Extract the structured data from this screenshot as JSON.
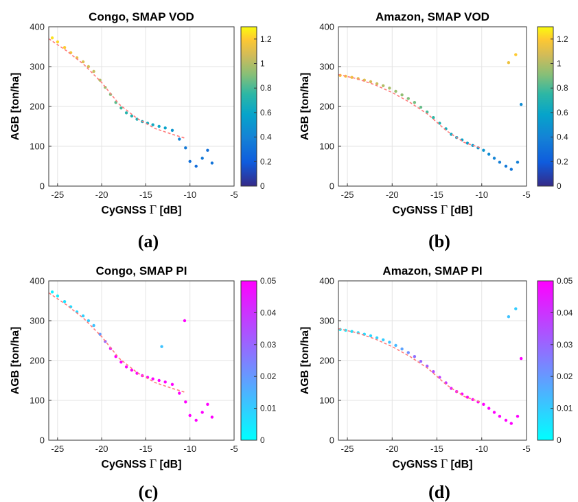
{
  "chart_data": [
    {
      "type": "scatter",
      "panel_label": "(a)",
      "title": "Congo, SMAP VOD",
      "xlabel": "CyGNSS",
      "xlabel_symbol": "Γ",
      "xlabel_unit": "[dB]",
      "ylabel": "AGB [ton/ha]",
      "xlim": [
        -26,
        -5
      ],
      "ylim": [
        0,
        400
      ],
      "xticks": [
        -25,
        -20,
        -15,
        -10,
        -5
      ],
      "yticks": [
        0,
        100,
        200,
        300,
        400
      ],
      "grid": true,
      "colorbar": {
        "min": 0,
        "max": 1.3,
        "ticks": [
          0,
          0.2,
          0.4,
          0.6,
          0.8,
          1,
          1.2
        ],
        "colormap": "parula"
      },
      "fit_color": "#ff7b7b",
      "fit_line": {
        "x": [
          -26,
          -24,
          -22,
          -20,
          -18,
          -16,
          -14,
          -12,
          -10.5
        ],
        "y": [
          370,
          340,
          305,
          260,
          205,
          170,
          145,
          130,
          120
        ]
      },
      "series": [
        {
          "x": [
            -25.6,
            -25.0,
            -24.2,
            -23.5,
            -22.8,
            -22.1,
            -21.5,
            -20.9,
            -20.2,
            -19.6,
            -19.0,
            -18.4,
            -17.8,
            -17.2,
            -16.6,
            -16.0,
            -15.4,
            -14.8,
            -14.2,
            -13.5,
            -12.8,
            -12.0,
            -11.2,
            -10.5,
            -10.0,
            -9.3,
            -8.6,
            -8.0,
            -7.5
          ],
          "y": [
            372,
            362,
            348,
            335,
            322,
            312,
            300,
            288,
            266,
            248,
            230,
            210,
            196,
            184,
            176,
            168,
            162,
            158,
            154,
            150,
            146,
            140,
            118,
            96,
            62,
            50,
            70,
            90,
            58
          ],
          "c": [
            1.25,
            1.22,
            1.2,
            1.17,
            1.13,
            1.1,
            1.07,
            1.04,
            1.0,
            0.95,
            0.9,
            0.84,
            0.78,
            0.72,
            0.7,
            0.68,
            0.66,
            0.65,
            0.63,
            0.6,
            0.58,
            0.5,
            0.4,
            0.35,
            0.3,
            0.28,
            0.35,
            0.3,
            0.32
          ]
        }
      ]
    },
    {
      "type": "scatter",
      "panel_label": "(b)",
      "title": "Amazon, SMAP VOD",
      "xlabel": "CyGNSS",
      "xlabel_symbol": "Γ",
      "xlabel_unit": "[dB]",
      "ylabel": "AGB [ton/ha]",
      "xlim": [
        -26,
        -5
      ],
      "ylim": [
        0,
        400
      ],
      "xticks": [
        -25,
        -20,
        -15,
        -10,
        -5
      ],
      "yticks": [
        0,
        100,
        200,
        300,
        400
      ],
      "grid": true,
      "colorbar": {
        "min": 0,
        "max": 1.3,
        "ticks": [
          0,
          0.2,
          0.4,
          0.6,
          0.8,
          1,
          1.2
        ],
        "colormap": "parula"
      },
      "fit_color": "#ff7b7b",
      "fit_line": {
        "x": [
          -26,
          -24,
          -22,
          -20,
          -18,
          -16,
          -14,
          -12,
          -10
        ],
        "y": [
          280,
          270,
          255,
          235,
          210,
          180,
          140,
          110,
          95
        ]
      },
      "series": [
        {
          "x": [
            -25.8,
            -25.2,
            -24.5,
            -23.8,
            -23.1,
            -22.4,
            -21.7,
            -21.0,
            -20.3,
            -19.6,
            -18.9,
            -18.2,
            -17.5,
            -16.8,
            -16.1,
            -15.4,
            -14.7,
            -14.0,
            -13.4,
            -12.8,
            -12.2,
            -11.6,
            -11.0,
            -10.4,
            -9.8,
            -9.2,
            -8.6,
            -8.0,
            -7.3,
            -6.7,
            -6.0,
            -5.6,
            -7.0,
            -6.2
          ],
          "y": [
            278,
            276,
            273,
            270,
            266,
            262,
            257,
            252,
            246,
            238,
            229,
            220,
            210,
            198,
            186,
            172,
            158,
            144,
            130,
            122,
            116,
            108,
            102,
            96,
            90,
            80,
            70,
            60,
            50,
            42,
            60,
            205,
            310,
            330
          ],
          "c": [
            1.2,
            1.18,
            1.15,
            1.12,
            1.1,
            1.08,
            1.05,
            1.0,
            0.98,
            0.95,
            0.93,
            0.9,
            0.88,
            0.85,
            0.8,
            0.75,
            0.7,
            0.66,
            0.62,
            0.6,
            0.58,
            0.56,
            0.54,
            0.52,
            0.5,
            0.45,
            0.4,
            0.38,
            0.35,
            0.33,
            0.38,
            0.45,
            1.15,
            1.2
          ]
        }
      ]
    },
    {
      "type": "scatter",
      "panel_label": "(c)",
      "title": "Congo, SMAP PI",
      "xlabel": "CyGNSS",
      "xlabel_symbol": "Γ",
      "xlabel_unit": "[dB]",
      "ylabel": "AGB [ton/ha]",
      "xlim": [
        -26,
        -5
      ],
      "ylim": [
        0,
        400
      ],
      "xticks": [
        -25,
        -20,
        -15,
        -10,
        -5
      ],
      "yticks": [
        0,
        100,
        200,
        300,
        400
      ],
      "grid": true,
      "colorbar": {
        "min": 0,
        "max": 0.05,
        "ticks": [
          0,
          0.01,
          0.02,
          0.03,
          0.04,
          0.05
        ],
        "colormap": "cool"
      },
      "fit_color": "#ff7b7b",
      "fit_line": {
        "x": [
          -26,
          -24,
          -22,
          -20,
          -18,
          -16,
          -14,
          -12,
          -10.5
        ],
        "y": [
          370,
          340,
          305,
          260,
          205,
          170,
          145,
          130,
          120
        ]
      },
      "series": [
        {
          "x": [
            -25.6,
            -25.0,
            -24.2,
            -23.5,
            -22.8,
            -22.1,
            -21.5,
            -20.9,
            -20.2,
            -19.6,
            -19.0,
            -18.4,
            -17.8,
            -17.2,
            -16.6,
            -16.0,
            -15.4,
            -14.8,
            -14.2,
            -13.5,
            -12.8,
            -12.0,
            -11.2,
            -10.5,
            -10.0,
            -9.3,
            -8.6,
            -8.0,
            -7.5,
            -10.6,
            -13.2
          ],
          "y": [
            372,
            362,
            348,
            335,
            322,
            312,
            300,
            288,
            266,
            248,
            230,
            210,
            196,
            184,
            176,
            168,
            162,
            158,
            154,
            150,
            146,
            140,
            118,
            96,
            62,
            50,
            70,
            90,
            58,
            300,
            235
          ],
          "c": [
            0.003,
            0.004,
            0.006,
            0.007,
            0.008,
            0.009,
            0.01,
            0.012,
            0.02,
            0.03,
            0.045,
            0.05,
            0.05,
            0.05,
            0.05,
            0.05,
            0.05,
            0.05,
            0.05,
            0.05,
            0.05,
            0.05,
            0.05,
            0.05,
            0.05,
            0.05,
            0.05,
            0.05,
            0.05,
            0.05,
            0.012
          ]
        }
      ]
    },
    {
      "type": "scatter",
      "panel_label": "(d)",
      "title": "Amazon, SMAP PI",
      "xlabel": "CyGNSS",
      "xlabel_symbol": "Γ",
      "xlabel_unit": "[dB]",
      "ylabel": "AGB [ton/ha]",
      "xlim": [
        -26,
        -5
      ],
      "ylim": [
        0,
        400
      ],
      "xticks": [
        -25,
        -20,
        -15,
        -10,
        -5
      ],
      "yticks": [
        0,
        100,
        200,
        300,
        400
      ],
      "grid": true,
      "colorbar": {
        "min": 0,
        "max": 0.05,
        "ticks": [
          0,
          0.01,
          0.02,
          0.03,
          0.04,
          0.05
        ],
        "colormap": "cool"
      },
      "fit_color": "#ff7b7b",
      "fit_line": {
        "x": [
          -26,
          -24,
          -22,
          -20,
          -18,
          -16,
          -14,
          -12,
          -10
        ],
        "y": [
          280,
          270,
          255,
          235,
          210,
          180,
          140,
          110,
          95
        ]
      },
      "series": [
        {
          "x": [
            -25.8,
            -25.2,
            -24.5,
            -23.8,
            -23.1,
            -22.4,
            -21.7,
            -21.0,
            -20.3,
            -19.6,
            -18.9,
            -18.2,
            -17.5,
            -16.8,
            -16.1,
            -15.4,
            -14.7,
            -14.0,
            -13.4,
            -12.8,
            -12.2,
            -11.6,
            -11.0,
            -10.4,
            -9.8,
            -9.2,
            -8.6,
            -8.0,
            -7.3,
            -6.7,
            -6.0,
            -5.6,
            -7.0,
            -6.2
          ],
          "y": [
            278,
            276,
            273,
            270,
            266,
            262,
            257,
            252,
            246,
            238,
            229,
            220,
            210,
            198,
            186,
            172,
            158,
            144,
            130,
            122,
            116,
            108,
            102,
            96,
            90,
            80,
            70,
            60,
            50,
            42,
            60,
            205,
            310,
            330
          ],
          "c": [
            0.003,
            0.004,
            0.005,
            0.006,
            0.007,
            0.008,
            0.009,
            0.01,
            0.012,
            0.014,
            0.018,
            0.022,
            0.028,
            0.03,
            0.032,
            0.035,
            0.038,
            0.04,
            0.045,
            0.048,
            0.05,
            0.05,
            0.05,
            0.05,
            0.05,
            0.05,
            0.05,
            0.05,
            0.05,
            0.05,
            0.05,
            0.05,
            0.012,
            0.01
          ]
        }
      ]
    }
  ]
}
